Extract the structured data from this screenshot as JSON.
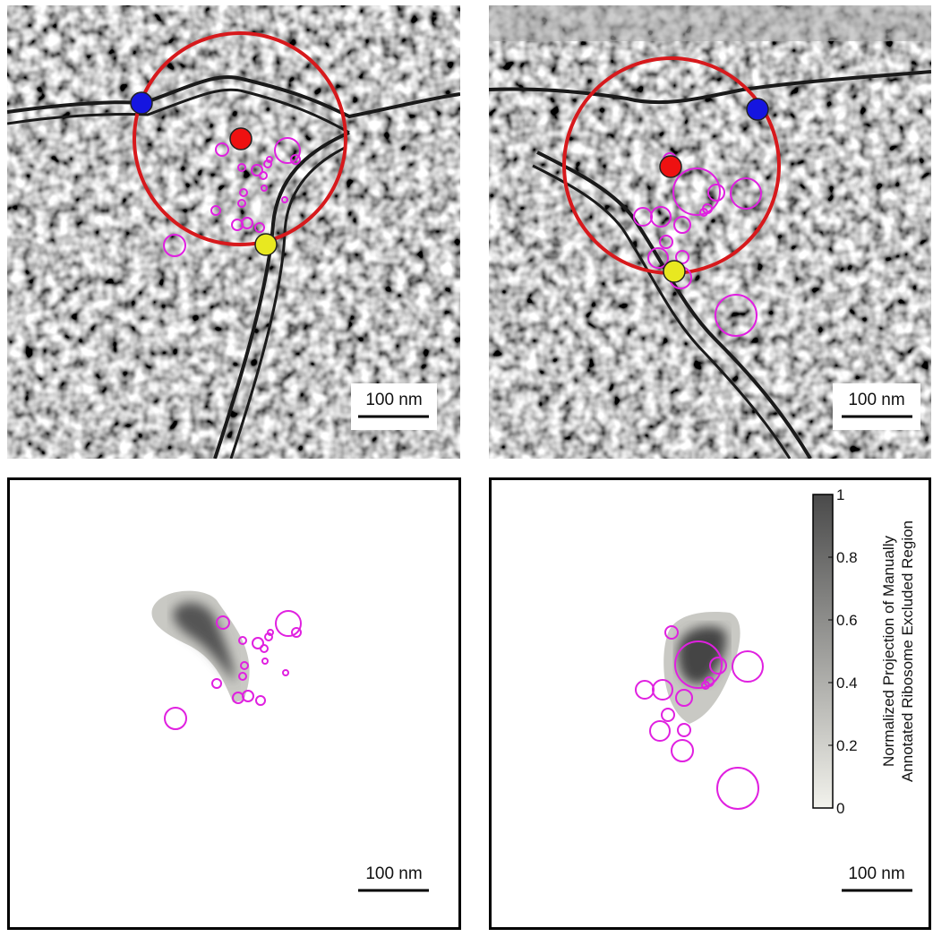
{
  "panels": [
    {
      "scale_bar": "100 nm"
    },
    {
      "scale_bar": "100 nm"
    },
    {
      "scale_bar": "100 nm"
    },
    {
      "scale_bar": "100 nm"
    }
  ],
  "colorbar": {
    "label": [
      "Normalized Projection of  Manually",
      "Annotated Ribosome Excluded Region"
    ],
    "lim": [
      0,
      1
    ],
    "ticks": [
      0,
      0.2,
      0.4,
      0.6,
      0.8,
      1
    ]
  }
}
